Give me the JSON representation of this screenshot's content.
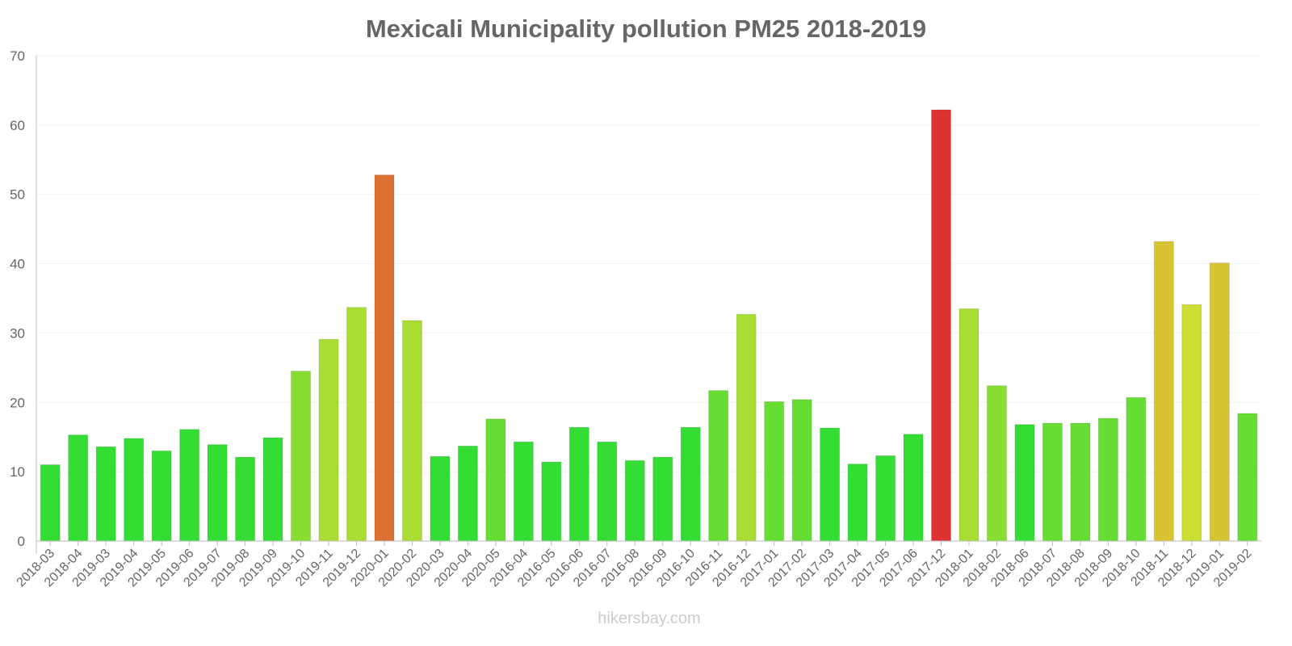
{
  "chart_data": {
    "type": "bar",
    "title": "Mexicali Municipality pollution PM25 2018-2019",
    "xlabel": "",
    "ylabel": "",
    "ylim": [
      0,
      70
    ],
    "yticks": [
      0,
      10,
      20,
      30,
      40,
      50,
      60,
      70
    ],
    "grid": true,
    "legend": "none",
    "categories": [
      "2018-03",
      "2018-04",
      "2019-03",
      "2019-04",
      "2019-05",
      "2019-06",
      "2019-07",
      "2019-08",
      "2019-09",
      "2019-10",
      "2019-11",
      "2019-12",
      "2020-01",
      "2020-02",
      "2020-03",
      "2020-04",
      "2020-05",
      "2016-04",
      "2016-05",
      "2016-06",
      "2016-07",
      "2016-08",
      "2016-09",
      "2016-10",
      "2016-11",
      "2016-12",
      "2017-01",
      "2017-02",
      "2017-03",
      "2017-04",
      "2017-05",
      "2017-06",
      "2017-12",
      "2018-01",
      "2018-02",
      "2018-06",
      "2018-07",
      "2018-08",
      "2018-09",
      "2018-10",
      "2018-11",
      "2018-12",
      "2019-01",
      "2019-02"
    ],
    "values": [
      11,
      15.3,
      13.6,
      14.8,
      13,
      16.1,
      13.9,
      12.1,
      14.9,
      24.5,
      29.1,
      33.7,
      52.8,
      31.8,
      12.2,
      13.7,
      17.6,
      14.3,
      11.4,
      16.4,
      14.3,
      11.6,
      12.1,
      16.4,
      21.7,
      32.7,
      20.1,
      20.4,
      16.3,
      11.1,
      12.3,
      15.4,
      62.2,
      33.5,
      22.4,
      16.8,
      17,
      17,
      17.7,
      20.7,
      43.2,
      34.1,
      40.1,
      18.4
    ],
    "color_scale": [
      {
        "below": 17,
        "color": "#33dd33"
      },
      {
        "below": 22,
        "color": "#66dd33"
      },
      {
        "below": 25,
        "color": "#88dd33"
      },
      {
        "below": 34,
        "color": "#aadd33"
      },
      {
        "below": 38,
        "color": "#ccdd33"
      },
      {
        "below": 50,
        "color": "#d8c433"
      },
      {
        "below": 60,
        "color": "#dd7033"
      },
      {
        "below": 1000,
        "color": "#dd3333"
      }
    ]
  },
  "watermark": "hikersbay.com"
}
